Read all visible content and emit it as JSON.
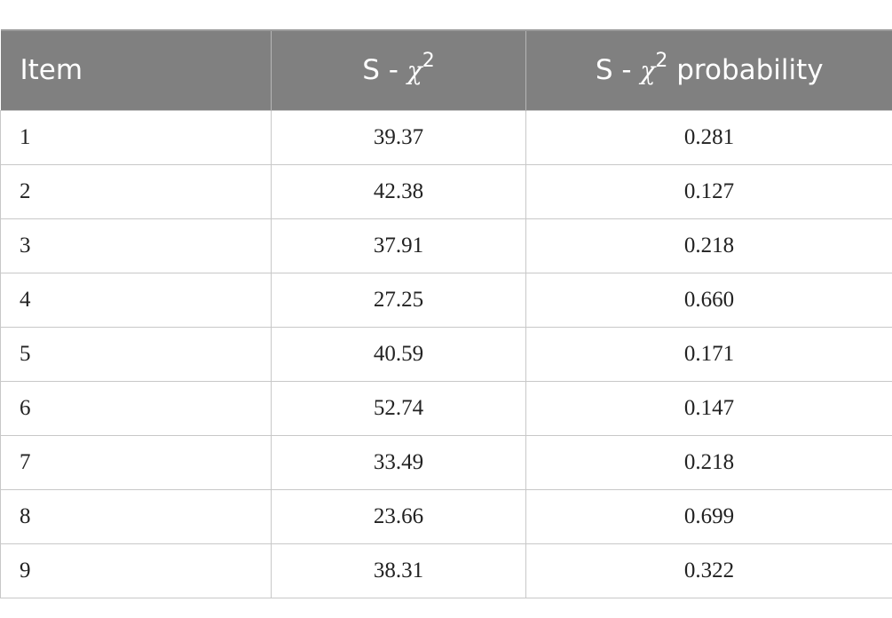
{
  "table": {
    "header": {
      "item": "Item",
      "schi_prefix": "S - ",
      "schi_symbol": "χ",
      "schi_exp": "2",
      "prob_prefix": "S - ",
      "prob_symbol": "χ",
      "prob_exp": "2",
      "prob_suffix": " probability"
    },
    "rows": [
      {
        "item": "1",
        "schi": "39.37",
        "prob": "0.281"
      },
      {
        "item": "2",
        "schi": "42.38",
        "prob": "0.127"
      },
      {
        "item": "3",
        "schi": "37.91",
        "prob": "0.218"
      },
      {
        "item": "4",
        "schi": "27.25",
        "prob": "0.660"
      },
      {
        "item": "5",
        "schi": "40.59",
        "prob": "0.171"
      },
      {
        "item": "6",
        "schi": "52.74",
        "prob": "0.147"
      },
      {
        "item": "7",
        "schi": "33.49",
        "prob": "0.218"
      },
      {
        "item": "8",
        "schi": "23.66",
        "prob": "0.699"
      },
      {
        "item": "9",
        "schi": "38.31",
        "prob": "0.322"
      }
    ],
    "colors": {
      "header_bg": "#808080",
      "header_text": "#ffffff",
      "border": "#c8c8c8"
    }
  }
}
